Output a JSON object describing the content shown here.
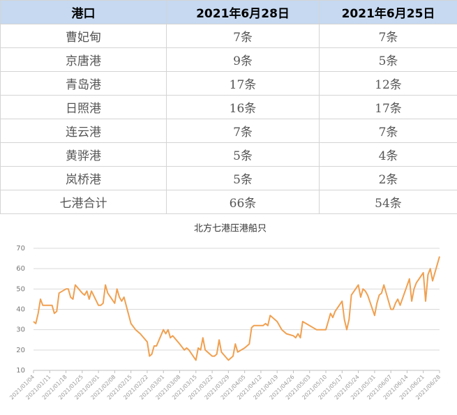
{
  "table": {
    "header": [
      "港口",
      "2021年6月28日",
      "2021年6月25日"
    ],
    "rows": [
      [
        "曹妃甸",
        "7条",
        "7条"
      ],
      [
        "京唐港",
        "9条",
        "5条"
      ],
      [
        "青岛港",
        "17条",
        "12条"
      ],
      [
        "日照港",
        "16条",
        "17条"
      ],
      [
        "连云港",
        "7条",
        "7条"
      ],
      [
        "黄骅港",
        "5条",
        "4条"
      ],
      [
        "岚桥港",
        "5条",
        "2条"
      ],
      [
        "七港合计",
        "66条",
        "54条"
      ]
    ]
  },
  "chart_data": {
    "type": "line",
    "title": "北方七港压港船只",
    "color": "#f0a050",
    "grid": true,
    "ylim": [
      10,
      70
    ],
    "yticks": [
      10,
      20,
      30,
      40,
      50,
      60,
      70
    ],
    "xlim": [
      "2021/01/04",
      "2021/06/28"
    ],
    "xticks": [
      "2021/01/04",
      "2021/01/11",
      "2021/01/18",
      "2021/01/25",
      "2021/02/01",
      "2021/02/08",
      "2021/02/15",
      "2021/02/22",
      "2021/03/01",
      "2021/03/08",
      "2021/03/15",
      "2021/03/22",
      "2021/03/29",
      "2021/04/05",
      "2021/04/12",
      "2021/04/19",
      "2021/04/26",
      "2021/05/03",
      "2021/05/10",
      "2021/05/17",
      "2021/05/24",
      "2021/05/31",
      "2021/06/07",
      "2021/06/14",
      "2021/06/21",
      "2021/06/28"
    ],
    "x": [
      "2021/01/04",
      "2021/01/05",
      "2021/01/06",
      "2021/01/07",
      "2021/01/08",
      "2021/01/11",
      "2021/01/12",
      "2021/01/13",
      "2021/01/14",
      "2021/01/15",
      "2021/01/18",
      "2021/01/19",
      "2021/01/20",
      "2021/01/21",
      "2021/01/22",
      "2021/01/25",
      "2021/01/26",
      "2021/01/27",
      "2021/01/28",
      "2021/01/29",
      "2021/02/01",
      "2021/02/02",
      "2021/02/03",
      "2021/02/04",
      "2021/02/05",
      "2021/02/08",
      "2021/02/09",
      "2021/02/10",
      "2021/02/11",
      "2021/02/12",
      "2021/02/15",
      "2021/02/17",
      "2021/02/19",
      "2021/02/22",
      "2021/02/23",
      "2021/02/24",
      "2021/02/25",
      "2021/02/26",
      "2021/03/01",
      "2021/03/02",
      "2021/03/03",
      "2021/03/04",
      "2021/03/05",
      "2021/03/08",
      "2021/03/10",
      "2021/03/11",
      "2021/03/12",
      "2021/03/15",
      "2021/03/16",
      "2021/03/17",
      "2021/03/18",
      "2021/03/19",
      "2021/03/22",
      "2021/03/23",
      "2021/03/24",
      "2021/03/25",
      "2021/03/26",
      "2021/03/29",
      "2021/03/30",
      "2021/03/31",
      "2021/04/01",
      "2021/04/02",
      "2021/04/05",
      "2021/04/06",
      "2021/04/07",
      "2021/04/08",
      "2021/04/09",
      "2021/04/12",
      "2021/04/13",
      "2021/04/14",
      "2021/04/15",
      "2021/04/16",
      "2021/04/19",
      "2021/04/20",
      "2021/04/21",
      "2021/04/22",
      "2021/04/23",
      "2021/04/26",
      "2021/04/27",
      "2021/04/28",
      "2021/04/29",
      "2021/04/30",
      "2021/05/06",
      "2021/05/07",
      "2021/05/10",
      "2021/05/11",
      "2021/05/12",
      "2021/05/13",
      "2021/05/14",
      "2021/05/17",
      "2021/05/18",
      "2021/05/19",
      "2021/05/20",
      "2021/05/21",
      "2021/05/24",
      "2021/05/25",
      "2021/05/26",
      "2021/05/27",
      "2021/05/28",
      "2021/05/31",
      "2021/06/01",
      "2021/06/02",
      "2021/06/03",
      "2021/06/04",
      "2021/06/07",
      "2021/06/08",
      "2021/06/09",
      "2021/06/10",
      "2021/06/11",
      "2021/06/15",
      "2021/06/16",
      "2021/06/17",
      "2021/06/18",
      "2021/06/21",
      "2021/06/22",
      "2021/06/23",
      "2021/06/24",
      "2021/06/25",
      "2021/06/28"
    ],
    "values": [
      34,
      33,
      38,
      45,
      42,
      42,
      42,
      38,
      39,
      48,
      50,
      50,
      46,
      45,
      52,
      48,
      47,
      49,
      45,
      49,
      42,
      42,
      43,
      52,
      48,
      43,
      50,
      46,
      44,
      46,
      33,
      30,
      28,
      24,
      17,
      18,
      22,
      22,
      30,
      28,
      30,
      26,
      27,
      23,
      20,
      21,
      20,
      15,
      21,
      20,
      26,
      20,
      17,
      17,
      18,
      25,
      19,
      15,
      16,
      17,
      23,
      19,
      21,
      22,
      23,
      31,
      32,
      32,
      32,
      33,
      32,
      37,
      34,
      32,
      30,
      29,
      28,
      27,
      26,
      28,
      26,
      34,
      30,
      30,
      30,
      34,
      38,
      36,
      39,
      44,
      35,
      30,
      35,
      47,
      52,
      46,
      50,
      49,
      47,
      37,
      43,
      47,
      48,
      52,
      40,
      40,
      43,
      45,
      42,
      55,
      44,
      50,
      53,
      58,
      44,
      57,
      60,
      54,
      66
    ]
  }
}
